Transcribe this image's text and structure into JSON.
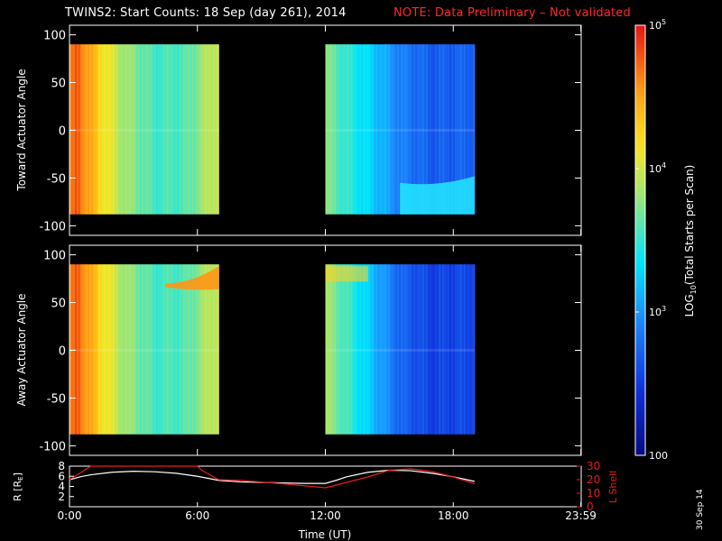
{
  "title": {
    "main": "TWINS2: Start Counts: 18 Sep (day 261), 2014",
    "note": "NOTE: Data Preliminary – Not validated"
  },
  "side_stamp": "30 Sep 14",
  "colors": {
    "background": "#000000",
    "axis": "#ffffff",
    "note": "#ff2a2a",
    "r_line": "#ffffff",
    "lshell_line": "#e81e1e"
  },
  "chart_data": [
    {
      "type": "heatmap",
      "name": "toward",
      "ylabel": "Toward Actuator Angle",
      "ylim": [
        -110,
        110
      ],
      "yticks": [
        100,
        50,
        0,
        -50,
        -100
      ],
      "y_extent": [
        -88,
        90
      ],
      "xlim": [
        0,
        24
      ],
      "data_segments_ut_hours": [
        [
          0.0,
          7.0
        ],
        [
          12.0,
          19.0
        ]
      ],
      "log_counts_profile": [
        {
          "t": 0.0,
          "v": 4.6
        },
        {
          "t": 0.4,
          "v": 4.75
        },
        {
          "t": 0.8,
          "v": 4.55
        },
        {
          "t": 1.5,
          "v": 4.2
        },
        {
          "t": 2.5,
          "v": 3.85
        },
        {
          "t": 4.0,
          "v": 3.55
        },
        {
          "t": 5.5,
          "v": 3.6
        },
        {
          "t": 6.5,
          "v": 3.9
        },
        {
          "t": 7.0,
          "v": 4.0
        },
        {
          "t": 12.0,
          "v": 3.75
        },
        {
          "t": 13.0,
          "v": 3.5
        },
        {
          "t": 14.0,
          "v": 3.3
        },
        {
          "t": 15.5,
          "v": 2.9
        },
        {
          "t": 17.0,
          "v": 2.7
        },
        {
          "t": 19.0,
          "v": 2.75
        }
      ],
      "features": [
        {
          "label": "bright band near 0 deg",
          "t_range": [
            0,
            7
          ]
        },
        {
          "label": "elevated counts below -50 deg",
          "t_range": [
            15.5,
            19
          ]
        }
      ]
    },
    {
      "type": "heatmap",
      "name": "away",
      "ylabel": "Away Actuator Angle",
      "ylim": [
        -110,
        110
      ],
      "yticks": [
        100,
        50,
        0,
        -50,
        -100
      ],
      "y_extent": [
        -88,
        90
      ],
      "xlim": [
        0,
        24
      ],
      "data_segments_ut_hours": [
        [
          0.0,
          7.0
        ],
        [
          12.0,
          19.0
        ]
      ],
      "log_counts_profile": [
        {
          "t": 0.0,
          "v": 4.6
        },
        {
          "t": 0.4,
          "v": 4.75
        },
        {
          "t": 0.8,
          "v": 4.55
        },
        {
          "t": 1.5,
          "v": 4.2
        },
        {
          "t": 2.5,
          "v": 3.85
        },
        {
          "t": 4.0,
          "v": 3.55
        },
        {
          "t": 5.5,
          "v": 3.6
        },
        {
          "t": 6.5,
          "v": 3.9
        },
        {
          "t": 7.0,
          "v": 4.0
        },
        {
          "t": 12.0,
          "v": 3.85
        },
        {
          "t": 13.0,
          "v": 3.55
        },
        {
          "t": 14.0,
          "v": 3.25
        },
        {
          "t": 15.5,
          "v": 2.75
        },
        {
          "t": 17.0,
          "v": 2.55
        },
        {
          "t": 19.0,
          "v": 2.6
        }
      ],
      "features": [
        {
          "label": "hot arc near 70-85 deg",
          "t_range": [
            4.5,
            7
          ]
        },
        {
          "label": "warm band near 80 deg",
          "t_range": [
            12,
            14
          ]
        }
      ]
    },
    {
      "type": "colorbar",
      "label": "LOG10(Total Starts per Scan)",
      "scale": "log",
      "range": [
        100,
        100000
      ],
      "ticks": [
        {
          "value": 100000,
          "label": "10^5"
        },
        {
          "value": 10000,
          "label": "10^4"
        },
        {
          "value": 1000,
          "label": "10^3"
        },
        {
          "value": 100,
          "label": "100"
        }
      ]
    },
    {
      "type": "line",
      "name": "orbit",
      "xlabel": "Time (UT)",
      "xlim": [
        0,
        24
      ],
      "xticks": [
        {
          "value": 0,
          "label": "0:00"
        },
        {
          "value": 6,
          "label": "6:00"
        },
        {
          "value": 12,
          "label": "12:00"
        },
        {
          "value": 18,
          "label": "18:00"
        },
        {
          "value": 23.983,
          "label": "23:59"
        }
      ],
      "ylabel": "R [RE]",
      "ylim": [
        0,
        8
      ],
      "yticks": [
        8,
        6,
        4,
        2
      ],
      "y2label": "L Shell",
      "y2lim": [
        0,
        30
      ],
      "y2ticks": [
        30,
        20,
        10,
        0
      ],
      "series": [
        {
          "name": "R [RE]",
          "axis": "left",
          "x": [
            0.0,
            0.5,
            1.0,
            2.0,
            3.0,
            4.0,
            5.0,
            6.0,
            7.0,
            8.0,
            9.0,
            10.0,
            11.0,
            12.0,
            12.5,
            13.0,
            14.0,
            15.0,
            16.0,
            17.0,
            18.0,
            19.0
          ],
          "y": [
            5.3,
            5.9,
            6.3,
            6.8,
            7.0,
            6.9,
            6.6,
            6.0,
            5.2,
            4.9,
            4.8,
            4.7,
            4.6,
            4.6,
            5.2,
            5.9,
            6.8,
            7.2,
            7.1,
            6.6,
            5.9,
            5.0
          ]
        },
        {
          "name": "L Shell",
          "axis": "right",
          "x": [
            0.0,
            0.4,
            0.8,
            1.0,
            6.0,
            6.2,
            7.0,
            8.0,
            10.0,
            12.0,
            13.0,
            14.0,
            15.0,
            16.0,
            17.0,
            18.0,
            19.0
          ],
          "y": [
            20.0,
            24.0,
            28.0,
            30.0,
            30.0,
            27.0,
            20.0,
            19.5,
            17.0,
            14.0,
            18.0,
            22.0,
            27.0,
            28.0,
            26.0,
            22.0,
            17.0
          ]
        }
      ]
    }
  ]
}
